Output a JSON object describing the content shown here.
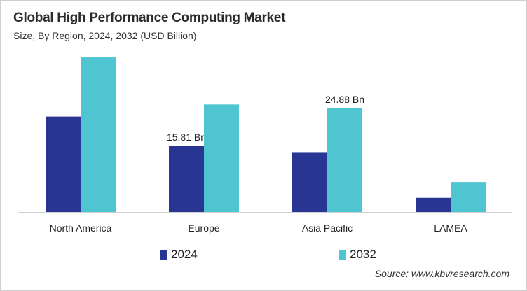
{
  "chart_data": {
    "type": "bar",
    "title": "Global High Performance Computing Market",
    "subtitle": "Size, By Region, 2024, 2032 (USD Billion)",
    "categories": [
      "North America",
      "Europe",
      "Asia Pacific",
      "LAMEA"
    ],
    "series": [
      {
        "name": "2024",
        "color": "#283593",
        "values": [
          22.9,
          15.81,
          14.2,
          3.4
        ],
        "labels": [
          null,
          "15.81 Bn",
          null,
          null
        ]
      },
      {
        "name": "2032",
        "color": "#4EC5D0",
        "values": [
          37.1,
          25.8,
          24.88,
          7.2
        ],
        "labels": [
          null,
          null,
          "24.88 Bn",
          null
        ]
      }
    ],
    "ylim": [
      0,
      45
    ],
    "grid": false,
    "legend": "bottom",
    "source": "Source: www.kbvresearch.com"
  }
}
